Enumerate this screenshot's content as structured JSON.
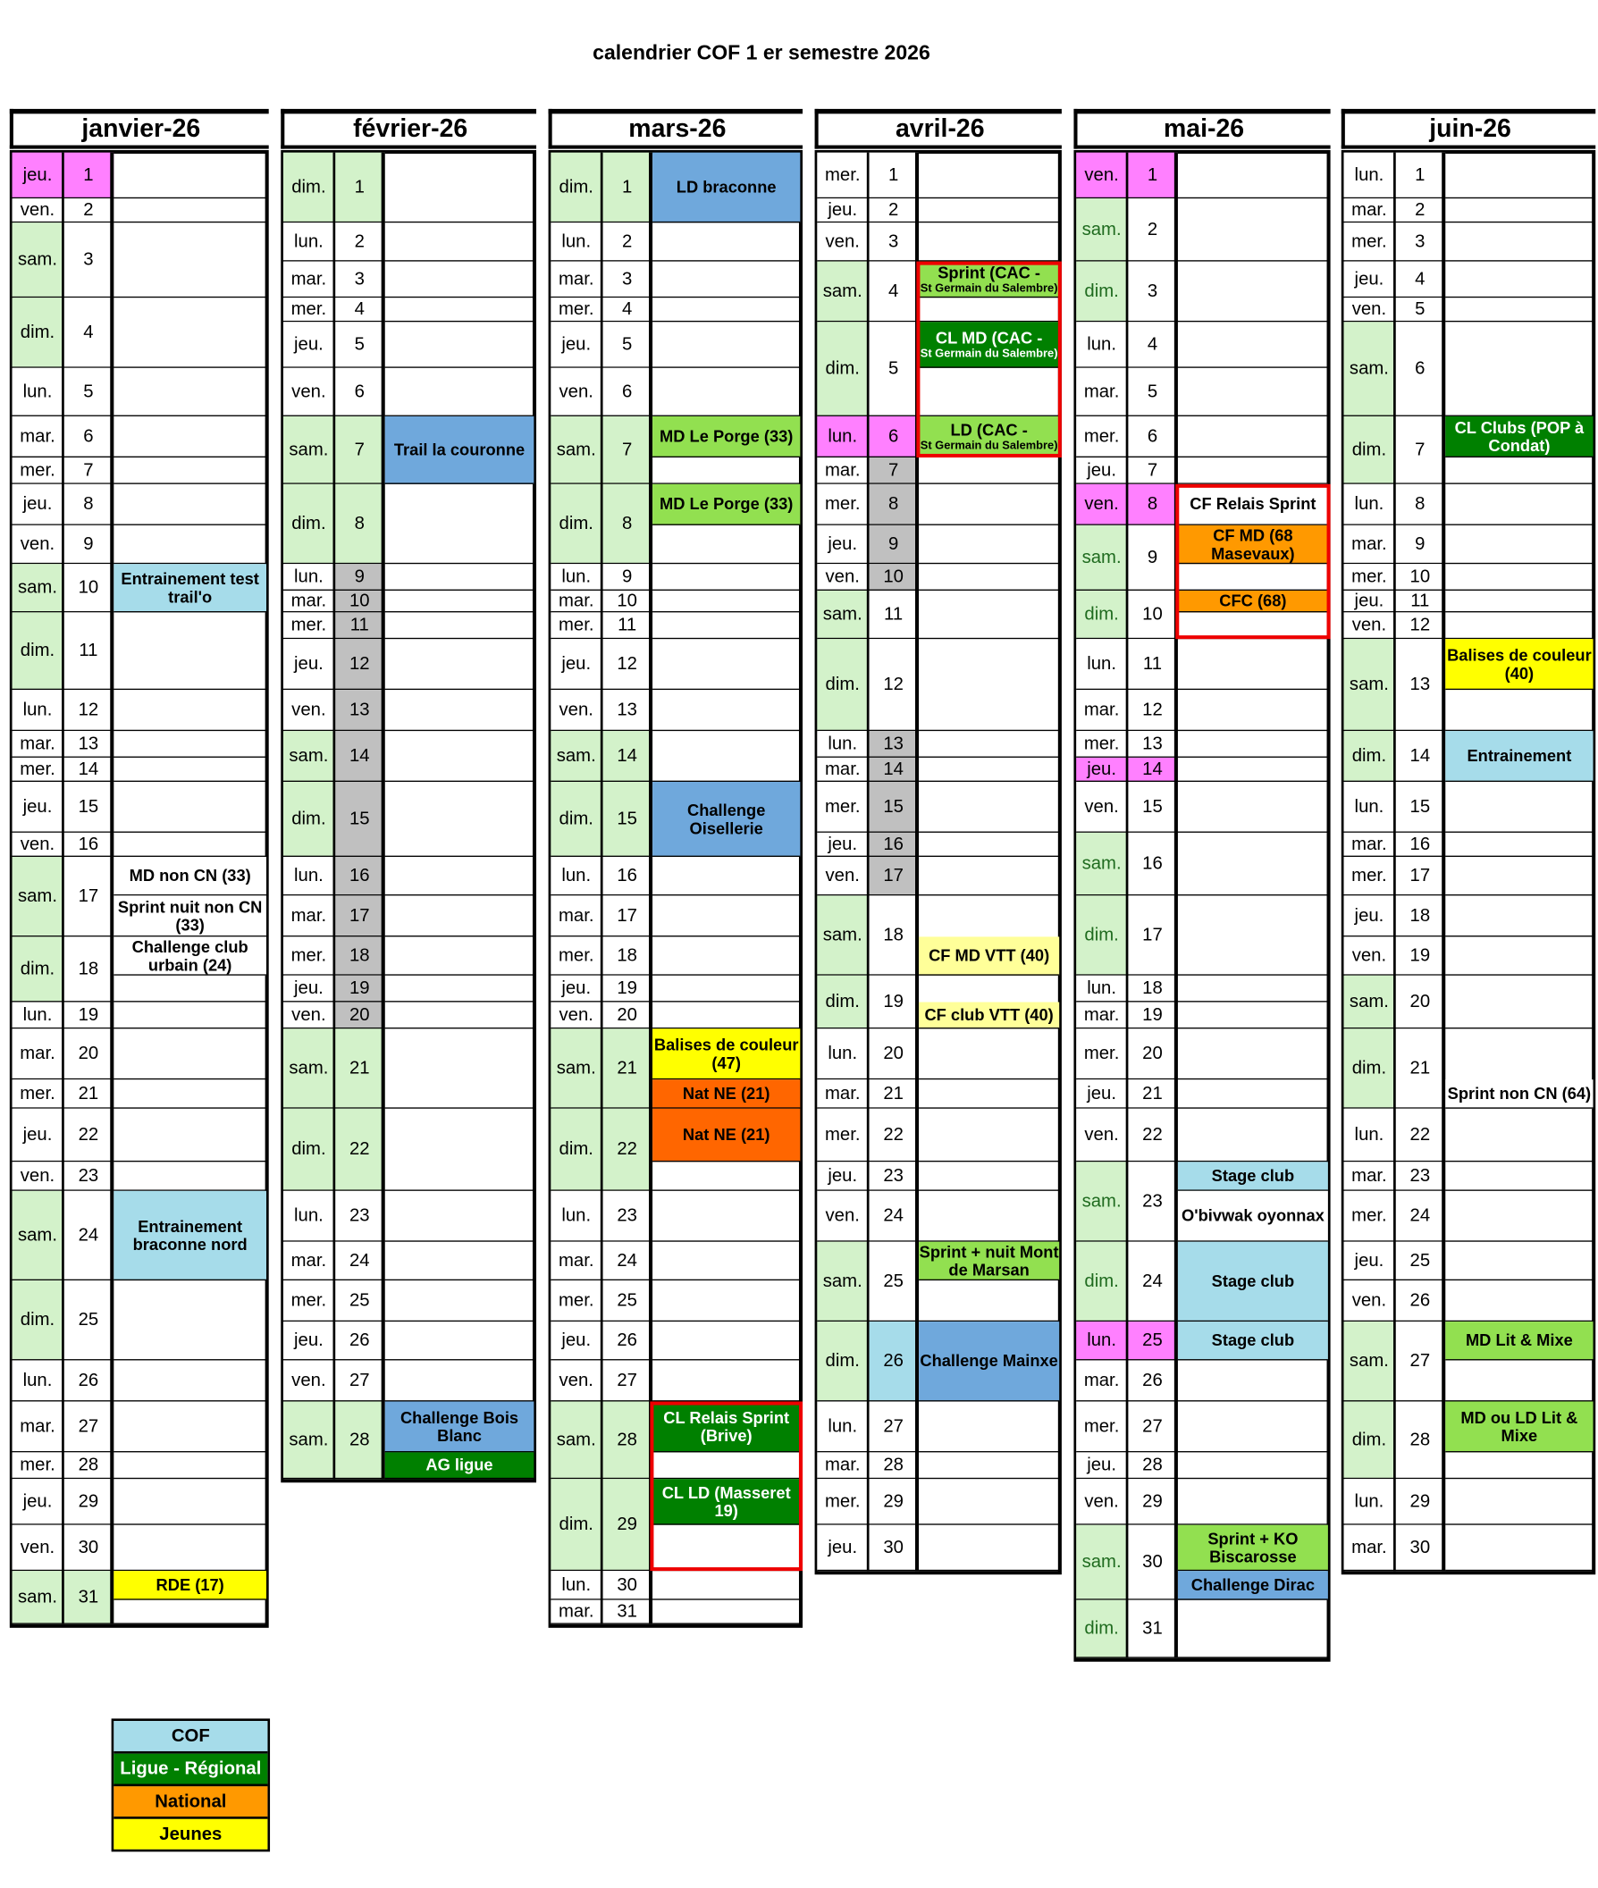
{
  "title": "calendrier COF 1 er semestre 2026",
  "colors": {
    "weekend": "#d3f2ca",
    "holiday": "#ff80ff",
    "vacation": "#c0c0c0",
    "cof": "#a6dcea",
    "blue": "#6fa8dc",
    "ligue": "#008000",
    "lime": "#92e050",
    "national": "#ff9900",
    "nat_ne": "#ff6600",
    "jeunes": "#ffff00",
    "jeunes_light": "#ffff99",
    "event_box": "#ee0000"
  },
  "legend": [
    {
      "label": "COF",
      "category": "cof"
    },
    {
      "label": "Ligue - Régional",
      "category": "ligue"
    },
    {
      "label": "National",
      "category": "national"
    },
    {
      "label": "Jeunes",
      "category": "jeunes"
    }
  ],
  "months": [
    {
      "name": "janvier-26",
      "first_weekday": 4,
      "days": 31,
      "holidays": [
        1
      ],
      "vacation": [],
      "events": [
        {
          "day": 10,
          "text": "Entrainement test trail'o",
          "category": "cof"
        },
        {
          "day": 17,
          "text": "MD non CN (33)",
          "category": "none"
        },
        {
          "day": 17,
          "text": "Sprint nuit non CN (33)",
          "category": "none"
        },
        {
          "day": 18,
          "text": "Challenge club urbain (24)",
          "category": "none"
        },
        {
          "day": 24,
          "text": "Entrainement braconne nord",
          "category": "cof"
        },
        {
          "day": 31,
          "text": "RDE (17)",
          "category": "jeunes"
        }
      ]
    },
    {
      "name": "février-26",
      "first_weekday": 0,
      "days": 28,
      "holidays": [],
      "vacation": [
        9,
        10,
        11,
        12,
        13,
        14,
        15,
        16,
        17,
        18,
        19,
        20
      ],
      "events": [
        {
          "day": 7,
          "text": "Trail la couronne",
          "category": "blue"
        },
        {
          "day": 28,
          "text": "Challenge Bois Blanc",
          "category": "blue"
        },
        {
          "day": 28,
          "text": "AG ligue",
          "category": "ligue"
        }
      ]
    },
    {
      "name": "mars-26",
      "first_weekday": 0,
      "days": 31,
      "holidays": [],
      "vacation": [],
      "events": [
        {
          "day": 1,
          "text": "LD braconne",
          "category": "blue"
        },
        {
          "day": 7,
          "text": "MD Le Porge (33)",
          "category": "lime"
        },
        {
          "day": 8,
          "text": "MD Le Porge (33)",
          "category": "lime"
        },
        {
          "day": 15,
          "text": "Challenge Oisellerie",
          "category": "blue"
        },
        {
          "day": 21,
          "text": "Balises de couleur (47)",
          "category": "jeunes"
        },
        {
          "day": 21,
          "text": "Nat NE (21)",
          "category": "nat_ne"
        },
        {
          "day": 22,
          "text": "Nat NE (21)",
          "category": "nat_ne"
        },
        {
          "day": 28,
          "text": "CL Relais Sprint (Brive)",
          "category": "ligue"
        },
        {
          "day": 29,
          "text": "CL LD (Masseret 19)",
          "category": "ligue"
        }
      ]
    },
    {
      "name": "avril-26",
      "first_weekday": 3,
      "days": 30,
      "holidays": [
        6
      ],
      "vacation": [
        7,
        8,
        9,
        10,
        13,
        14,
        15,
        16,
        17
      ],
      "events": [
        {
          "day": 4,
          "text": "Sprint (CAC -",
          "sub": "St Germain du Salembre)",
          "category": "lime"
        },
        {
          "day": 5,
          "text": "CL MD (CAC -",
          "sub": "St Germain du Salembre)",
          "category": "ligue"
        },
        {
          "day": 6,
          "text": "LD (CAC -",
          "sub": "St Germain du Salembre)",
          "category": "lime"
        },
        {
          "day": 18,
          "text": "CF MD VTT (40)",
          "category": "jeunes_light"
        },
        {
          "day": 19,
          "text": "CF club VTT (40)",
          "category": "jeunes_light"
        },
        {
          "day": 25,
          "text": "Sprint + nuit Mont de Marsan",
          "category": "lime"
        },
        {
          "day": 26,
          "text": "Challenge Mainxe",
          "category": "blue"
        }
      ]
    },
    {
      "name": "mai-26",
      "first_weekday": 5,
      "days": 31,
      "holidays": [
        1,
        8,
        14,
        25
      ],
      "vacation": [],
      "events": [
        {
          "day": 8,
          "text": "CF Relais Sprint",
          "category": "none"
        },
        {
          "day": 9,
          "text": "CF MD (68 Masevaux)",
          "category": "national"
        },
        {
          "day": 10,
          "text": "CFC (68)",
          "category": "national"
        },
        {
          "day": 23,
          "text": "Stage club",
          "category": "cof"
        },
        {
          "day": 23,
          "text": "O'bivwak oyonnax",
          "category": "none"
        },
        {
          "day": 24,
          "text": "Stage club",
          "category": "cof"
        },
        {
          "day": 25,
          "text": "Stage club",
          "category": "cof"
        },
        {
          "day": 30,
          "text": "Sprint + KO Biscarosse",
          "category": "lime"
        },
        {
          "day": 30,
          "text": "Challenge Dirac",
          "category": "blue"
        }
      ]
    },
    {
      "name": "juin-26",
      "first_weekday": 1,
      "days": 30,
      "holidays": [],
      "vacation": [],
      "events": [
        {
          "day": 7,
          "text": "CL Clubs (POP à Condat)",
          "category": "ligue"
        },
        {
          "day": 13,
          "text": "Balises de couleur (40)",
          "category": "jeunes"
        },
        {
          "day": 14,
          "text": "Entrainement",
          "category": "cof"
        },
        {
          "day": 21,
          "text": "Sprint non CN (64)",
          "category": "none"
        },
        {
          "day": 27,
          "text": "MD Lit & Mixe",
          "category": "lime"
        },
        {
          "day": 28,
          "text": "MD ou LD Lit & Mixe",
          "category": "lime"
        }
      ]
    }
  ],
  "weekday_labels": [
    "dim.",
    "lun.",
    "mar.",
    "mer.",
    "jeu.",
    "ven.",
    "sam."
  ]
}
